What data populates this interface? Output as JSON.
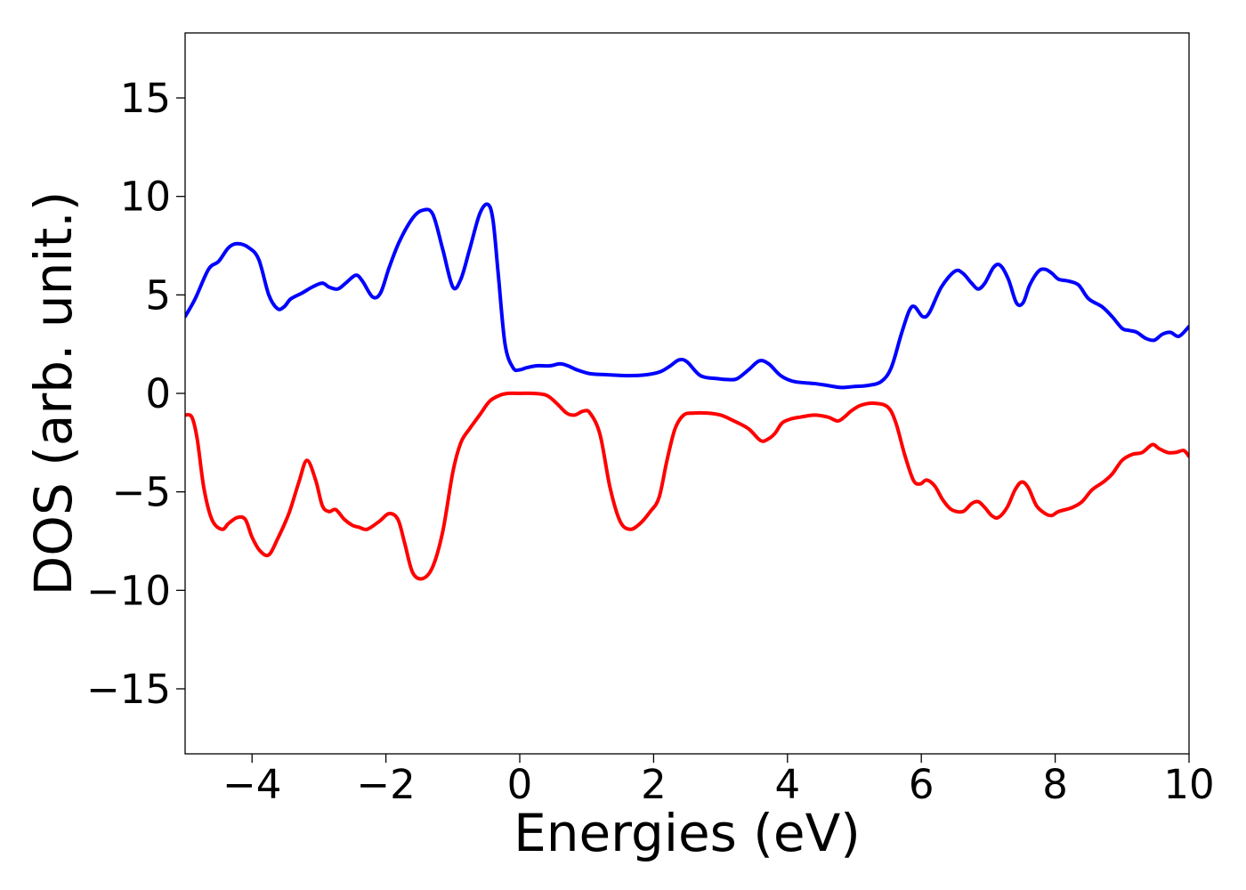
{
  "chart_data": {
    "type": "line",
    "title": "",
    "xlabel": "Energies (eV)",
    "ylabel": "DOS (arb. unit.)",
    "xlim": [
      -5,
      10
    ],
    "ylim": [
      -18.3,
      18.3
    ],
    "x_ticks": [
      -4,
      -2,
      0,
      2,
      4,
      6,
      8,
      10
    ],
    "x_tick_labels": [
      "−4",
      "−2",
      "0",
      "2",
      "4",
      "6",
      "8",
      "10"
    ],
    "y_ticks": [
      15,
      10,
      5,
      0,
      -5,
      -10,
      -15
    ],
    "y_tick_labels": [
      "15",
      "10",
      "5",
      "0",
      "−5",
      "−10",
      "−15"
    ],
    "grid": false,
    "legend": "none",
    "series": [
      {
        "color": "#0000ff",
        "x": [
          -5.0,
          -4.85,
          -4.65,
          -4.5,
          -4.35,
          -4.22,
          -4.05,
          -3.9,
          -3.75,
          -3.62,
          -3.52,
          -3.42,
          -3.25,
          -3.1,
          -2.95,
          -2.85,
          -2.72,
          -2.6,
          -2.45,
          -2.35,
          -2.2,
          -2.08,
          -1.95,
          -1.8,
          -1.6,
          -1.45,
          -1.3,
          -1.15,
          -1.0,
          -0.88,
          -0.75,
          -0.6,
          -0.48,
          -0.4,
          -0.32,
          -0.22,
          -0.1,
          0.0,
          0.1,
          0.25,
          0.45,
          0.6,
          0.72,
          0.85,
          1.05,
          1.3,
          1.6,
          1.9,
          2.1,
          2.25,
          2.38,
          2.5,
          2.7,
          2.95,
          3.12,
          3.25,
          3.42,
          3.58,
          3.72,
          3.9,
          4.1,
          4.4,
          4.6,
          4.8,
          5.0,
          5.2,
          5.4,
          5.55,
          5.7,
          5.82,
          5.9,
          6.02,
          6.12,
          6.3,
          6.5,
          6.62,
          6.75,
          6.85,
          6.95,
          7.08,
          7.18,
          7.3,
          7.42,
          7.52,
          7.62,
          7.75,
          7.85,
          7.95,
          8.05,
          8.2,
          8.35,
          8.5,
          8.7,
          8.85,
          9.0,
          9.1,
          9.22,
          9.35,
          9.48,
          9.6,
          9.72,
          9.85,
          10.0
        ],
        "y": [
          3.9,
          4.8,
          6.3,
          6.7,
          7.4,
          7.6,
          7.4,
          6.8,
          5.0,
          4.3,
          4.4,
          4.8,
          5.1,
          5.4,
          5.6,
          5.4,
          5.3,
          5.6,
          6.0,
          5.7,
          4.9,
          5.1,
          6.4,
          7.7,
          8.9,
          9.3,
          9.1,
          7.3,
          5.4,
          5.8,
          7.3,
          9.1,
          9.6,
          8.8,
          6.0,
          2.5,
          1.3,
          1.2,
          1.3,
          1.4,
          1.4,
          1.5,
          1.4,
          1.2,
          1.0,
          0.95,
          0.9,
          0.95,
          1.1,
          1.4,
          1.7,
          1.6,
          0.9,
          0.75,
          0.7,
          0.75,
          1.2,
          1.65,
          1.5,
          0.9,
          0.6,
          0.5,
          0.4,
          0.3,
          0.35,
          0.4,
          0.6,
          1.3,
          3.0,
          4.2,
          4.4,
          3.9,
          4.1,
          5.4,
          6.2,
          6.1,
          5.6,
          5.3,
          5.6,
          6.4,
          6.5,
          5.8,
          4.6,
          4.6,
          5.5,
          6.2,
          6.3,
          6.1,
          5.8,
          5.7,
          5.5,
          4.8,
          4.4,
          3.9,
          3.3,
          3.2,
          3.1,
          2.8,
          2.7,
          3.0,
          3.1,
          2.9,
          3.4
        ]
      },
      {
        "color": "#ff0000",
        "x": [
          -5.0,
          -4.9,
          -4.82,
          -4.72,
          -4.6,
          -4.45,
          -4.35,
          -4.22,
          -4.1,
          -4.0,
          -3.88,
          -3.75,
          -3.62,
          -3.45,
          -3.3,
          -3.18,
          -3.05,
          -2.95,
          -2.85,
          -2.75,
          -2.62,
          -2.5,
          -2.4,
          -2.28,
          -2.1,
          -1.95,
          -1.82,
          -1.72,
          -1.6,
          -1.45,
          -1.3,
          -1.15,
          -1.0,
          -0.88,
          -0.75,
          -0.6,
          -0.45,
          -0.3,
          -0.18,
          0.0,
          0.2,
          0.4,
          0.55,
          0.7,
          0.82,
          0.95,
          1.05,
          1.2,
          1.35,
          1.5,
          1.65,
          1.8,
          1.95,
          2.08,
          2.2,
          2.32,
          2.45,
          2.6,
          2.8,
          3.0,
          3.2,
          3.42,
          3.6,
          3.72,
          3.82,
          3.92,
          4.05,
          4.2,
          4.4,
          4.6,
          4.75,
          4.85,
          4.95,
          5.1,
          5.3,
          5.5,
          5.62,
          5.75,
          5.88,
          5.98,
          6.08,
          6.2,
          6.32,
          6.45,
          6.62,
          6.75,
          6.85,
          6.95,
          7.05,
          7.15,
          7.28,
          7.4,
          7.5,
          7.6,
          7.72,
          7.85,
          7.95,
          8.05,
          8.25,
          8.4,
          8.55,
          8.72,
          8.85,
          9.0,
          9.15,
          9.3,
          9.45,
          9.55,
          9.68,
          9.8,
          9.92,
          10.0
        ],
        "y": [
          -1.1,
          -1.2,
          -2.3,
          -4.8,
          -6.4,
          -6.9,
          -6.6,
          -6.3,
          -6.4,
          -7.3,
          -8.0,
          -8.2,
          -7.4,
          -6.1,
          -4.5,
          -3.4,
          -4.4,
          -5.7,
          -6.0,
          -5.9,
          -6.4,
          -6.7,
          -6.8,
          -6.9,
          -6.5,
          -6.1,
          -6.4,
          -7.6,
          -9.1,
          -9.4,
          -8.8,
          -7.0,
          -4.0,
          -2.5,
          -1.8,
          -1.1,
          -0.4,
          -0.1,
          0.0,
          0.0,
          0.0,
          -0.1,
          -0.5,
          -1.0,
          -1.1,
          -0.9,
          -1.0,
          -2.1,
          -4.8,
          -6.5,
          -6.9,
          -6.6,
          -6.0,
          -5.3,
          -3.4,
          -1.8,
          -1.1,
          -1.0,
          -1.0,
          -1.1,
          -1.4,
          -1.8,
          -2.4,
          -2.3,
          -2.0,
          -1.5,
          -1.3,
          -1.2,
          -1.1,
          -1.2,
          -1.4,
          -1.2,
          -0.9,
          -0.6,
          -0.5,
          -0.7,
          -1.5,
          -3.1,
          -4.4,
          -4.6,
          -4.4,
          -4.7,
          -5.4,
          -5.9,
          -6.0,
          -5.6,
          -5.5,
          -5.8,
          -6.2,
          -6.3,
          -5.8,
          -4.9,
          -4.5,
          -4.8,
          -5.7,
          -6.1,
          -6.2,
          -6.0,
          -5.8,
          -5.5,
          -4.9,
          -4.5,
          -4.1,
          -3.4,
          -3.1,
          -3.0,
          -2.6,
          -2.8,
          -3.0,
          -3.0,
          -2.9,
          -3.2
        ]
      }
    ]
  }
}
